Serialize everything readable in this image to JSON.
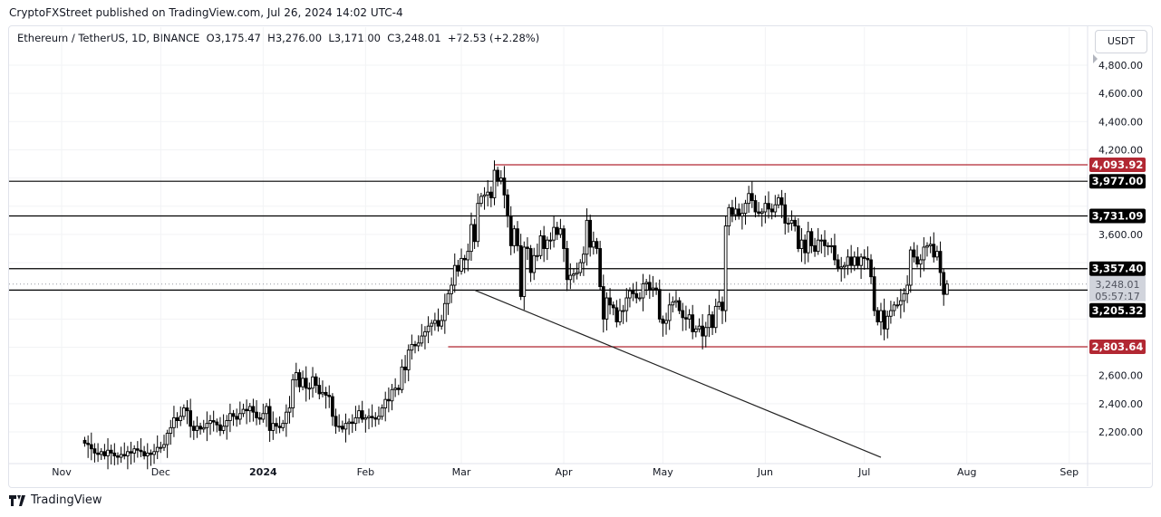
{
  "header": {
    "published": "CryptoFXStreet published on TradingView.com, Jul 26, 2024 14:02 UTC-4"
  },
  "legend": {
    "symbol": "Ethereum / TetherUS, 1D, BINANCE",
    "open": "O3,175.47",
    "high": "H3,276.00",
    "low": "L3,171.00",
    "close": "C3,248.01",
    "change": "+72.53 (+2.28%)"
  },
  "currency_button": "USDT",
  "footer": {
    "brand": "TradingView"
  },
  "colors": {
    "up_body": "#ffffff",
    "down_body": "#000000",
    "outline": "#000000",
    "red_level": "#b22833",
    "label_red": "#b22833",
    "label_black": "#000000"
  },
  "chart_data": {
    "type": "candlestick",
    "start_date": "2023-11-08",
    "interval": "1D",
    "closes": [
      2120,
      2110,
      2080,
      2050,
      2040,
      2060,
      2030,
      2070,
      2050,
      2030,
      2020,
      2040,
      2030,
      2060,
      2050,
      2080,
      2070,
      2060,
      2030,
      2050,
      2040,
      2060,
      2090,
      2090,
      2110,
      2190,
      2230,
      2300,
      2280,
      2310,
      2370,
      2350,
      2240,
      2210,
      2240,
      2220,
      2230,
      2260,
      2280,
      2270,
      2250,
      2210,
      2240,
      2280,
      2330,
      2310,
      2290,
      2330,
      2360,
      2350,
      2380,
      2340,
      2300,
      2290,
      2330,
      2380,
      2210,
      2260,
      2240,
      2230,
      2260,
      2340,
      2370,
      2570,
      2620,
      2520,
      2580,
      2510,
      2510,
      2590,
      2530,
      2470,
      2480,
      2460,
      2450,
      2310,
      2240,
      2240,
      2220,
      2260,
      2270,
      2260,
      2300,
      2350,
      2290,
      2300,
      2310,
      2300,
      2290,
      2310,
      2370,
      2430,
      2420,
      2500,
      2510,
      2500,
      2660,
      2640,
      2780,
      2820,
      2810,
      2830,
      2880,
      2910,
      2950,
      2970,
      2990,
      2950,
      2990,
      3110,
      3180,
      3240,
      3380,
      3340,
      3430,
      3420,
      3480,
      3670,
      3550,
      3820,
      3870,
      3880,
      3900,
      3860,
      4055,
      3980,
      4000,
      3880,
      3730,
      3520,
      3640,
      3520,
      3160,
      3510,
      3500,
      3330,
      3450,
      3450,
      3590,
      3500,
      3560,
      3560,
      3650,
      3600,
      3640,
      3500,
      3280,
      3310,
      3320,
      3330,
      3400,
      3460,
      3700,
      3510,
      3550,
      3500,
      3230,
      3000,
      3150,
      3100,
      3080,
      2980,
      3060,
      3060,
      3150,
      3200,
      3180,
      3150,
      3150,
      3250,
      3260,
      3210,
      3220,
      3210,
      3000,
      2970,
      2990,
      3100,
      3120,
      3130,
      3060,
      3010,
      3000,
      3030,
      2910,
      2930,
      2950,
      2880,
      2940,
      3030,
      2940,
      3090,
      3120,
      3060,
      3660,
      3790,
      3740,
      3780,
      3730,
      3750,
      3820,
      3890,
      3840,
      3760,
      3750,
      3760,
      3820,
      3780,
      3760,
      3810,
      3860,
      3810,
      3680,
      3680,
      3700,
      3660,
      3500,
      3560,
      3470,
      3620,
      3520,
      3480,
      3560,
      3560,
      3520,
      3520,
      3520,
      3420,
      3360,
      3370,
      3380,
      3440,
      3380,
      3440,
      3380,
      3440,
      3430,
      3420,
      3300,
      3060,
      2980,
      3060,
      2930,
      3020,
      3060,
      3100,
      3100,
      3130,
      3180,
      3240,
      3490,
      3440,
      3390,
      3420,
      3510,
      3520,
      3530,
      3440,
      3480,
      3330,
      3175,
      3248.01
    ],
    "last_candle": {
      "open": 3175.47,
      "high": 3276.0,
      "low": 3171.0,
      "close": 3248.01
    },
    "ylim": [
      2120,
      4900
    ],
    "y_ticks": [
      {
        "v": 4800,
        "label": "4,800.00"
      },
      {
        "v": 4600,
        "label": "4,600.00"
      },
      {
        "v": 4400,
        "label": "4,400.00"
      },
      {
        "v": 4200,
        "label": "4,200.00"
      },
      {
        "v": 3600,
        "label": "3,600.00"
      },
      {
        "v": 2600,
        "label": "2,600.00"
      },
      {
        "v": 2400,
        "label": "2,400.00"
      },
      {
        "v": 2200,
        "label": "2,200.00"
      }
    ],
    "x_ticks": [
      {
        "date": "2023-11-01",
        "label": "Nov"
      },
      {
        "date": "2023-12-01",
        "label": "Dec"
      },
      {
        "date": "2024-01-01",
        "label": "2024",
        "bold": true
      },
      {
        "date": "2024-02-01",
        "label": "Feb"
      },
      {
        "date": "2024-03-01",
        "label": "Mar"
      },
      {
        "date": "2024-04-01",
        "label": "Apr"
      },
      {
        "date": "2024-05-01",
        "label": "May"
      },
      {
        "date": "2024-06-01",
        "label": "Jun"
      },
      {
        "date": "2024-07-01",
        "label": "Jul"
      },
      {
        "date": "2024-08-01",
        "label": "Aug"
      },
      {
        "date": "2024-09-01",
        "label": "Sep"
      }
    ],
    "levels": [
      {
        "value": 4093.92,
        "label": "4,093.92",
        "color": "red",
        "from": "2024-03-11"
      },
      {
        "value": 3977.0,
        "label": "3,977.00",
        "color": "black"
      },
      {
        "value": 3731.09,
        "label": "3,731.09",
        "color": "black"
      },
      {
        "value": 3357.4,
        "label": "3,357.40",
        "color": "black"
      },
      {
        "value": 3205.32,
        "label": "3,205.32",
        "color": "black"
      },
      {
        "value": 2803.64,
        "label": "2,803.64",
        "color": "red",
        "from": "2024-02-26"
      }
    ],
    "current_price": {
      "label": "3,248.01",
      "countdown": "05:57:17",
      "value": 3248.01
    },
    "trendline": {
      "from": {
        "date": "2024-03-05",
        "value": 3205
      },
      "to": {
        "date": "2024-07-06",
        "value": 2020
      }
    }
  }
}
